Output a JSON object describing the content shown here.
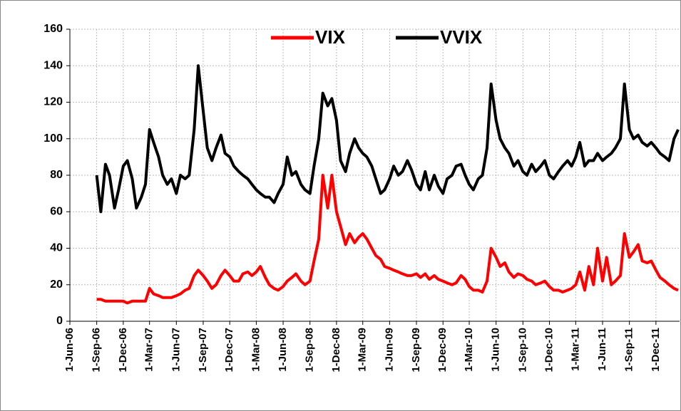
{
  "chart_data": {
    "type": "line",
    "x": [
      "2006-09-01",
      "2006-09-15",
      "2006-10-01",
      "2006-10-15",
      "2006-11-01",
      "2006-11-15",
      "2006-12-01",
      "2006-12-15",
      "2007-01-01",
      "2007-01-15",
      "2007-02-01",
      "2007-02-15",
      "2007-03-01",
      "2007-03-15",
      "2007-04-01",
      "2007-04-15",
      "2007-05-01",
      "2007-05-15",
      "2007-06-01",
      "2007-06-15",
      "2007-07-01",
      "2007-07-15",
      "2007-08-01",
      "2007-08-15",
      "2007-09-01",
      "2007-09-15",
      "2007-10-01",
      "2007-10-15",
      "2007-11-01",
      "2007-11-15",
      "2007-12-01",
      "2007-12-15",
      "2008-01-01",
      "2008-01-15",
      "2008-02-01",
      "2008-02-15",
      "2008-03-01",
      "2008-03-15",
      "2008-04-01",
      "2008-04-15",
      "2008-05-01",
      "2008-05-15",
      "2008-06-01",
      "2008-06-15",
      "2008-07-01",
      "2008-07-15",
      "2008-08-01",
      "2008-08-15",
      "2008-09-01",
      "2008-09-15",
      "2008-10-01",
      "2008-10-15",
      "2008-11-01",
      "2008-11-15",
      "2008-12-01",
      "2008-12-15",
      "2009-01-01",
      "2009-01-15",
      "2009-02-01",
      "2009-02-15",
      "2009-03-01",
      "2009-03-15",
      "2009-04-01",
      "2009-04-15",
      "2009-05-01",
      "2009-05-15",
      "2009-06-01",
      "2009-06-15",
      "2009-07-01",
      "2009-07-15",
      "2009-08-01",
      "2009-08-15",
      "2009-09-01",
      "2009-09-15",
      "2009-10-01",
      "2009-10-15",
      "2009-11-01",
      "2009-11-15",
      "2009-12-01",
      "2009-12-15",
      "2010-01-01",
      "2010-01-15",
      "2010-02-01",
      "2010-02-15",
      "2010-03-01",
      "2010-03-15",
      "2010-04-01",
      "2010-04-15",
      "2010-05-01",
      "2010-05-15",
      "2010-06-01",
      "2010-06-15",
      "2010-07-01",
      "2010-07-15",
      "2010-08-01",
      "2010-08-15",
      "2010-09-01",
      "2010-09-15",
      "2010-10-01",
      "2010-10-15",
      "2010-11-01",
      "2010-11-15",
      "2010-12-01",
      "2010-12-15",
      "2011-01-01",
      "2011-01-15",
      "2011-02-01",
      "2011-02-15",
      "2011-03-01",
      "2011-03-15",
      "2011-04-01",
      "2011-04-15",
      "2011-05-01",
      "2011-05-15",
      "2011-06-01",
      "2011-06-15",
      "2011-07-01",
      "2011-07-15",
      "2011-08-01",
      "2011-08-15",
      "2011-09-01",
      "2011-09-15",
      "2011-10-01",
      "2011-10-15",
      "2011-11-01",
      "2011-11-15",
      "2011-12-01",
      "2011-12-15",
      "2012-01-01",
      "2012-01-15",
      "2012-02-01",
      "2012-02-15"
    ],
    "series": [
      {
        "name": "VIX",
        "color": "#ff0000",
        "values": [
          12,
          12,
          11,
          11,
          11,
          11,
          11,
          10,
          11,
          11,
          11,
          11,
          18,
          15,
          14,
          13,
          13,
          13,
          14,
          15,
          17,
          18,
          25,
          28,
          25,
          22,
          18,
          20,
          25,
          28,
          25,
          22,
          22,
          26,
          27,
          25,
          27,
          30,
          24,
          20,
          18,
          17,
          19,
          22,
          24,
          26,
          22,
          20,
          22,
          33,
          45,
          80,
          62,
          80,
          60,
          52,
          42,
          48,
          43,
          46,
          48,
          45,
          40,
          36,
          34,
          30,
          29,
          28,
          27,
          26,
          25,
          25,
          26,
          24,
          26,
          23,
          25,
          23,
          22,
          21,
          20,
          21,
          25,
          23,
          19,
          17,
          17,
          16,
          22,
          40,
          35,
          30,
          32,
          27,
          24,
          26,
          25,
          23,
          22,
          20,
          21,
          22,
          19,
          17,
          17,
          16,
          17,
          18,
          20,
          27,
          17,
          30,
          20,
          40,
          22,
          35,
          20,
          22,
          25,
          48,
          35,
          38,
          42,
          33,
          32,
          33,
          28,
          24,
          22,
          20,
          18,
          17
        ]
      },
      {
        "name": "VVIX",
        "color": "#000000",
        "values": [
          80,
          60,
          86,
          80,
          62,
          72,
          85,
          88,
          78,
          62,
          68,
          75,
          105,
          98,
          90,
          80,
          75,
          78,
          70,
          80,
          78,
          80,
          105,
          140,
          115,
          95,
          88,
          95,
          102,
          92,
          90,
          85,
          82,
          80,
          78,
          75,
          72,
          70,
          68,
          68,
          65,
          70,
          75,
          90,
          80,
          82,
          75,
          72,
          70,
          85,
          100,
          125,
          118,
          122,
          110,
          88,
          82,
          92,
          100,
          95,
          92,
          90,
          85,
          78,
          70,
          72,
          78,
          85,
          80,
          82,
          88,
          83,
          75,
          72,
          82,
          72,
          80,
          74,
          70,
          78,
          80,
          85,
          86,
          80,
          75,
          72,
          78,
          80,
          95,
          130,
          110,
          100,
          95,
          92,
          85,
          88,
          82,
          80,
          86,
          82,
          85,
          88,
          80,
          78,
          82,
          85,
          88,
          85,
          90,
          98,
          85,
          88,
          88,
          92,
          88,
          90,
          92,
          95,
          100,
          130,
          105,
          100,
          102,
          98,
          96,
          98,
          95,
          92,
          90,
          88,
          100,
          105
        ]
      }
    ],
    "xlim": [
      "2006-06-01",
      "2012-02-20"
    ],
    "xticks": [
      {
        "value": "2006-06-01",
        "label": "1-Jun-06"
      },
      {
        "value": "2006-09-01",
        "label": "1-Sep-06"
      },
      {
        "value": "2006-12-01",
        "label": "1-Dec-06"
      },
      {
        "value": "2007-03-01",
        "label": "1-Mar-07"
      },
      {
        "value": "2007-06-01",
        "label": "1-Jun-07"
      },
      {
        "value": "2007-09-01",
        "label": "1-Sep-07"
      },
      {
        "value": "2007-12-01",
        "label": "1-Dec-07"
      },
      {
        "value": "2008-03-01",
        "label": "1-Mar-08"
      },
      {
        "value": "2008-06-01",
        "label": "1-Jun-08"
      },
      {
        "value": "2008-09-01",
        "label": "1-Sep-08"
      },
      {
        "value": "2008-12-01",
        "label": "1-Dec-08"
      },
      {
        "value": "2009-03-01",
        "label": "1-Mar-09"
      },
      {
        "value": "2009-06-01",
        "label": "1-Jun-09"
      },
      {
        "value": "2009-09-01",
        "label": "1-Sep-09"
      },
      {
        "value": "2009-12-01",
        "label": "1-Dec-09"
      },
      {
        "value": "2010-03-01",
        "label": "1-Mar-10"
      },
      {
        "value": "2010-06-01",
        "label": "1-Jun-10"
      },
      {
        "value": "2010-09-01",
        "label": "1-Sep-10"
      },
      {
        "value": "2010-12-01",
        "label": "1-Dec-10"
      },
      {
        "value": "2011-03-01",
        "label": "1-Mar-11"
      },
      {
        "value": "2011-06-01",
        "label": "1-Jun-11"
      },
      {
        "value": "2011-09-01",
        "label": "1-Sep-11"
      },
      {
        "value": "2011-12-01",
        "label": "1-Dec-11"
      }
    ],
    "ylim": [
      0,
      160
    ],
    "yticks": [
      0,
      20,
      40,
      60,
      80,
      100,
      120,
      140,
      160
    ],
    "grid": true,
    "legend": "top"
  }
}
